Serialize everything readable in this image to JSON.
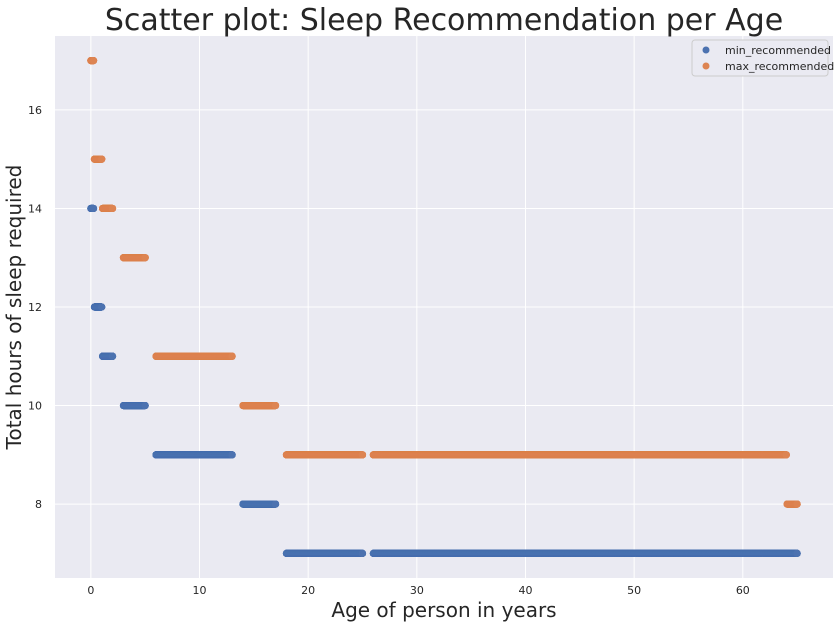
{
  "chart_data": {
    "type": "scatter",
    "title": "Scatter plot: Sleep Recommendation per Age",
    "xlabel": "Age of person in years",
    "ylabel": "Total hours of sleep required",
    "xlim": [
      -3.3,
      68.3
    ],
    "ylim": [
      6.5,
      17.5
    ],
    "x_ticks": [
      0,
      10,
      20,
      30,
      40,
      50,
      60
    ],
    "y_ticks": [
      8,
      10,
      12,
      14,
      16
    ],
    "grid": true,
    "legend_position": "top-right",
    "series": [
      {
        "name": "min_recommended",
        "color": "#4c72b0",
        "segments": [
          {
            "x_start": 0,
            "x_end": 0.25,
            "y": 14
          },
          {
            "x_start": 0.33,
            "x_end": 1,
            "y": 12
          },
          {
            "x_start": 1.08,
            "x_end": 2,
            "y": 11
          },
          {
            "x_start": 3,
            "x_end": 5,
            "y": 10
          },
          {
            "x_start": 6,
            "x_end": 13,
            "y": 9
          },
          {
            "x_start": 14,
            "x_end": 17,
            "y": 8
          },
          {
            "x_start": 18,
            "x_end": 25,
            "y": 7
          },
          {
            "x_start": 26,
            "x_end": 65,
            "y": 7
          }
        ]
      },
      {
        "name": "max_recommended",
        "color": "#dd8452",
        "segments": [
          {
            "x_start": 0,
            "x_end": 0.25,
            "y": 17
          },
          {
            "x_start": 0.33,
            "x_end": 1,
            "y": 15
          },
          {
            "x_start": 1.08,
            "x_end": 2,
            "y": 14
          },
          {
            "x_start": 3,
            "x_end": 5,
            "y": 13
          },
          {
            "x_start": 6,
            "x_end": 13,
            "y": 11
          },
          {
            "x_start": 14,
            "x_end": 17,
            "y": 10
          },
          {
            "x_start": 18,
            "x_end": 25,
            "y": 9
          },
          {
            "x_start": 26,
            "x_end": 64,
            "y": 9
          },
          {
            "x_start": 64.08,
            "x_end": 65,
            "y": 8
          }
        ]
      }
    ]
  }
}
